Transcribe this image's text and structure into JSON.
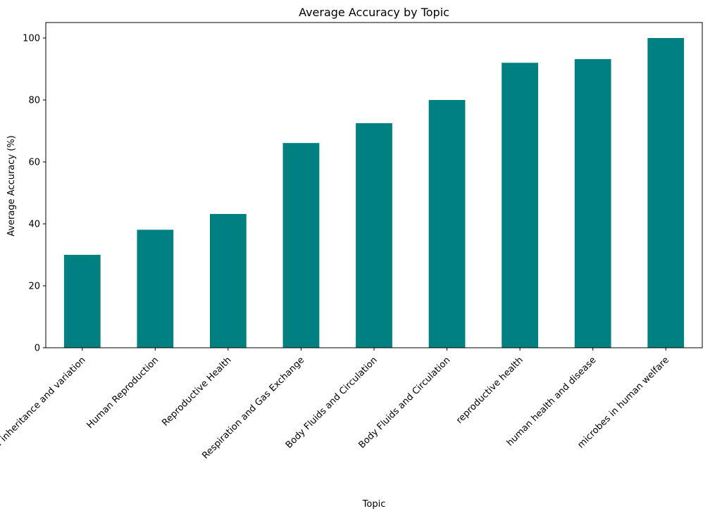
{
  "chart_data": {
    "type": "bar",
    "title": "Average Accuracy by Topic",
    "xlabel": "Topic",
    "ylabel": "Average Accuracy (%)",
    "categories": [
      "principles of inheritance and variation",
      "Human Reproduction",
      "Reproductive Health",
      "Respiration and Gas Exchange",
      "Body Fluids and Circulation",
      "Body Fluids and Circulation",
      "reproductive health",
      "human health and disease",
      "microbes in human welfare"
    ],
    "values": [
      30.0,
      38.1,
      43.2,
      66.1,
      72.5,
      80.0,
      92.0,
      93.2,
      100.0
    ],
    "ylim": [
      0,
      105
    ],
    "yticks": [
      0,
      20,
      40,
      60,
      80,
      100
    ],
    "bar_color": "#008080",
    "grid": false,
    "legend": "none"
  }
}
